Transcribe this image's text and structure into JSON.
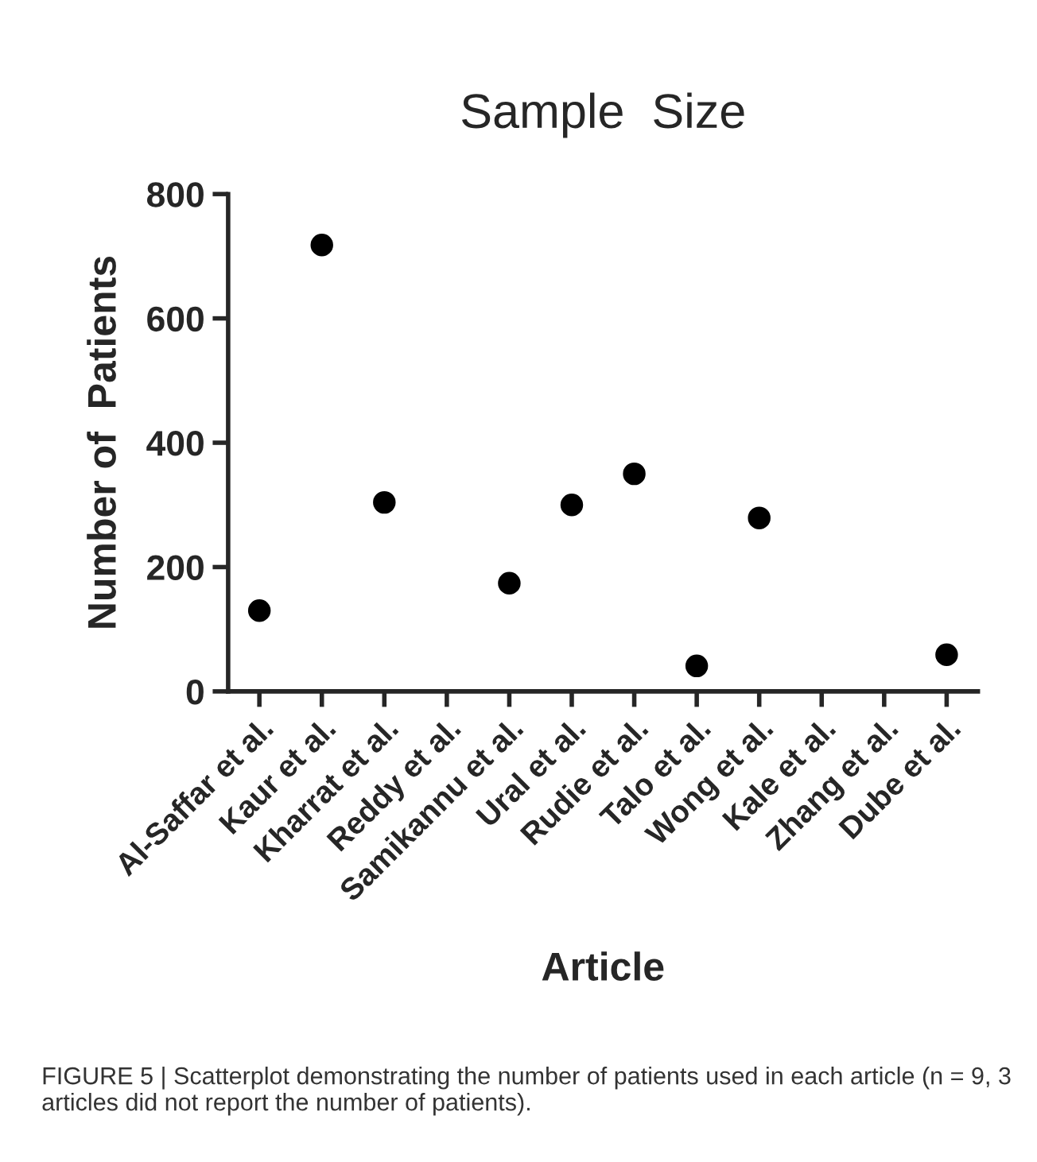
{
  "chart_data": {
    "type": "scatter",
    "title": "Sample  Size",
    "xlabel": "Article",
    "ylabel": "Number of  Patients",
    "categories": [
      "Al-Saffar et al.",
      "Kaur et al.",
      "Kharrat et al.",
      "Reddy et al.",
      "Samikannu et al.",
      "Ural et al.",
      "Rudie et al.",
      "Talo et al.",
      "Wong et al.",
      "Kale et al.",
      "Zhang et al.",
      "Dube et al."
    ],
    "series": [
      {
        "color": "#000000",
        "values": [
          130,
          718,
          304,
          null,
          174,
          300,
          350,
          41,
          279,
          null,
          null,
          59
        ]
      }
    ],
    "ylim": [
      0,
      800
    ],
    "yticks": [
      0,
      200,
      400,
      600,
      800
    ],
    "grid": false,
    "legend": false,
    "marker": "circle",
    "annotations": [
      "FIGURE 5 | Scatterplot demonstrating the number of patients used in each article (n = 9, 3 articles did not report the number of patients)."
    ]
  }
}
